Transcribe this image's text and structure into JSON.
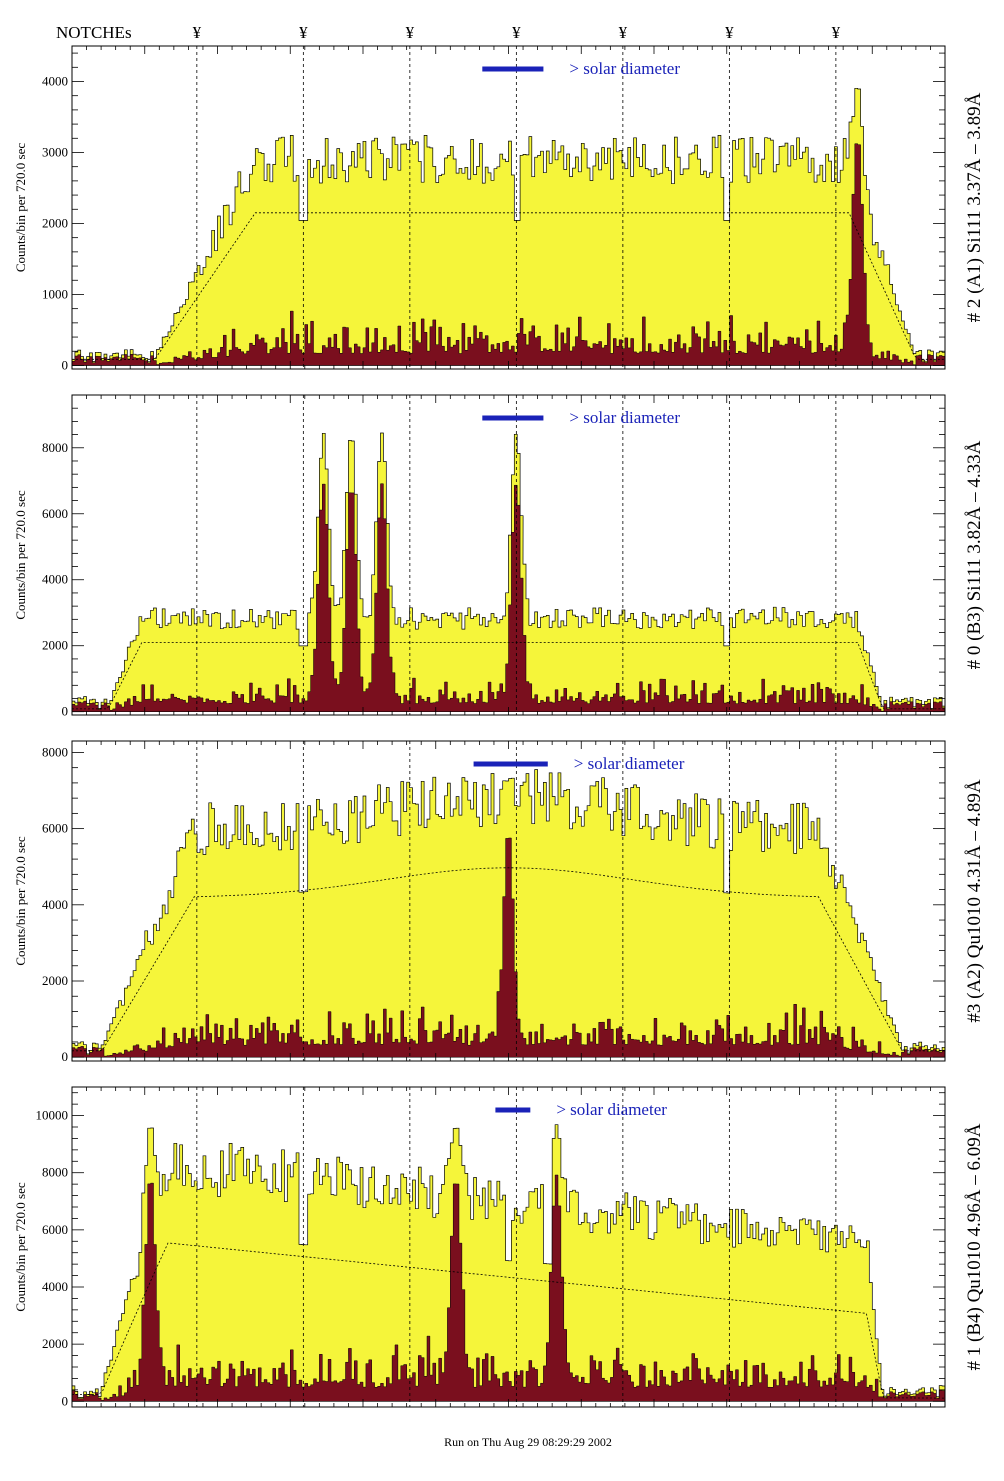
{
  "header": {
    "notches_label": "NOTCHEs",
    "notch_symbol": "¥",
    "footer": "Run on Thu Aug 29 08:29:29 2002"
  },
  "colors": {
    "total_fill": "#f5f53a",
    "low_fill": "#7a0f1e",
    "legend_bar": "#1a22b8",
    "axis": "#000000"
  },
  "notch_positions": [
    0.143,
    0.265,
    0.387,
    0.509,
    0.631,
    0.753,
    0.875
  ],
  "chart_data": [
    {
      "type": "area",
      "ylabel": "Counts/bin per    720.0 sec",
      "right_label": "# 2 (A1) Si111  3.37Å – 3.89Å",
      "legend": "> solar diameter",
      "legend_bar": [
        0.47,
        0.54
      ],
      "yticks": [
        0,
        1000,
        2000,
        3000,
        4000
      ],
      "ylim": [
        -50,
        4500
      ],
      "smooth": 2150,
      "spike_bins": [
        0.265,
        0.509,
        0.75
      ],
      "peak_bins": [
        0.9
      ],
      "seed": 11,
      "low_level": 480,
      "edges": [
        0.09,
        0.97
      ],
      "ramp": [
        0.12,
        0.08
      ]
    },
    {
      "type": "area",
      "ylabel": "Counts/bin per    720.0 sec",
      "right_label": "# 0 (B3) Si111  3.82Å – 4.33Å",
      "legend": "> solar diameter",
      "legend_bar": [
        0.47,
        0.54
      ],
      "yticks": [
        0,
        2000,
        4000,
        6000,
        8000
      ],
      "ylim": [
        -100,
        9600
      ],
      "smooth": 2100,
      "spike_bins": [
        0.265,
        0.75
      ],
      "peak_bins": [
        0.288,
        0.32,
        0.355,
        0.509
      ],
      "seed": 23,
      "low_level": 700,
      "edges": [
        0.04,
        0.93
      ],
      "ramp": [
        0.04,
        0.03
      ]
    },
    {
      "type": "area",
      "ylabel": "Counts/bin per    720.0 sec",
      "right_label": "#3 (A2) Qu1010  4.31Å – 4.89Å",
      "legend": "> solar diameter",
      "legend_bar": [
        0.46,
        0.545
      ],
      "yticks": [
        0,
        2000,
        4000,
        6000,
        8000
      ],
      "ylim": [
        -100,
        8300
      ],
      "smooth": 4400,
      "spike_bins": [
        0.265,
        0.75
      ],
      "peak_bins": [
        0.5
      ],
      "seed": 37,
      "low_level": 900,
      "edges": [
        0.03,
        0.955
      ],
      "ramp": [
        0.11,
        0.1
      ]
    },
    {
      "type": "area",
      "ylabel": "Counts/bin per    720.0 sec",
      "right_label": "# 1 (B4) Qu1010 4.96Å – 6.09Å",
      "legend": "> solar diameter",
      "legend_bar": [
        0.485,
        0.525
      ],
      "yticks": [
        0,
        2000,
        4000,
        6000,
        8000,
        10000
      ],
      "ylim": [
        -200,
        11000
      ],
      "smooth": 5600,
      "spike_bins": [
        0.265,
        0.5,
        0.545
      ],
      "peak_bins": [
        0.09,
        0.44,
        0.555
      ],
      "seed": 53,
      "low_level": 1400,
      "edges": [
        0.03,
        0.93
      ],
      "ramp": [
        0.08,
        0.02
      ]
    }
  ]
}
